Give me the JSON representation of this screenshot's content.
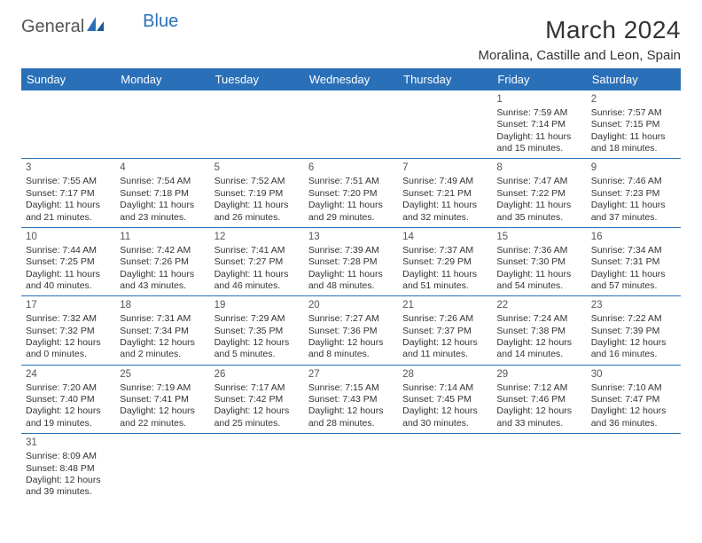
{
  "logo": {
    "text1": "General",
    "text2": "Blue"
  },
  "title": "March 2024",
  "location": "Moralina, Castille and Leon, Spain",
  "colors": {
    "header_bg": "#2a70b8",
    "header_fg": "#ffffff",
    "border": "#2a70b8",
    "text": "#333333",
    "logo_accent": "#2a70b8"
  },
  "day_headers": [
    "Sunday",
    "Monday",
    "Tuesday",
    "Wednesday",
    "Thursday",
    "Friday",
    "Saturday"
  ],
  "weeks": [
    [
      null,
      null,
      null,
      null,
      null,
      {
        "d": "1",
        "sr": "7:59 AM",
        "ss": "7:14 PM",
        "dl": "11 hours and 15 minutes."
      },
      {
        "d": "2",
        "sr": "7:57 AM",
        "ss": "7:15 PM",
        "dl": "11 hours and 18 minutes."
      }
    ],
    [
      {
        "d": "3",
        "sr": "7:55 AM",
        "ss": "7:17 PM",
        "dl": "11 hours and 21 minutes."
      },
      {
        "d": "4",
        "sr": "7:54 AM",
        "ss": "7:18 PM",
        "dl": "11 hours and 23 minutes."
      },
      {
        "d": "5",
        "sr": "7:52 AM",
        "ss": "7:19 PM",
        "dl": "11 hours and 26 minutes."
      },
      {
        "d": "6",
        "sr": "7:51 AM",
        "ss": "7:20 PM",
        "dl": "11 hours and 29 minutes."
      },
      {
        "d": "7",
        "sr": "7:49 AM",
        "ss": "7:21 PM",
        "dl": "11 hours and 32 minutes."
      },
      {
        "d": "8",
        "sr": "7:47 AM",
        "ss": "7:22 PM",
        "dl": "11 hours and 35 minutes."
      },
      {
        "d": "9",
        "sr": "7:46 AM",
        "ss": "7:23 PM",
        "dl": "11 hours and 37 minutes."
      }
    ],
    [
      {
        "d": "10",
        "sr": "7:44 AM",
        "ss": "7:25 PM",
        "dl": "11 hours and 40 minutes."
      },
      {
        "d": "11",
        "sr": "7:42 AM",
        "ss": "7:26 PM",
        "dl": "11 hours and 43 minutes."
      },
      {
        "d": "12",
        "sr": "7:41 AM",
        "ss": "7:27 PM",
        "dl": "11 hours and 46 minutes."
      },
      {
        "d": "13",
        "sr": "7:39 AM",
        "ss": "7:28 PM",
        "dl": "11 hours and 48 minutes."
      },
      {
        "d": "14",
        "sr": "7:37 AM",
        "ss": "7:29 PM",
        "dl": "11 hours and 51 minutes."
      },
      {
        "d": "15",
        "sr": "7:36 AM",
        "ss": "7:30 PM",
        "dl": "11 hours and 54 minutes."
      },
      {
        "d": "16",
        "sr": "7:34 AM",
        "ss": "7:31 PM",
        "dl": "11 hours and 57 minutes."
      }
    ],
    [
      {
        "d": "17",
        "sr": "7:32 AM",
        "ss": "7:32 PM",
        "dl": "12 hours and 0 minutes."
      },
      {
        "d": "18",
        "sr": "7:31 AM",
        "ss": "7:34 PM",
        "dl": "12 hours and 2 minutes."
      },
      {
        "d": "19",
        "sr": "7:29 AM",
        "ss": "7:35 PM",
        "dl": "12 hours and 5 minutes."
      },
      {
        "d": "20",
        "sr": "7:27 AM",
        "ss": "7:36 PM",
        "dl": "12 hours and 8 minutes."
      },
      {
        "d": "21",
        "sr": "7:26 AM",
        "ss": "7:37 PM",
        "dl": "12 hours and 11 minutes."
      },
      {
        "d": "22",
        "sr": "7:24 AM",
        "ss": "7:38 PM",
        "dl": "12 hours and 14 minutes."
      },
      {
        "d": "23",
        "sr": "7:22 AM",
        "ss": "7:39 PM",
        "dl": "12 hours and 16 minutes."
      }
    ],
    [
      {
        "d": "24",
        "sr": "7:20 AM",
        "ss": "7:40 PM",
        "dl": "12 hours and 19 minutes."
      },
      {
        "d": "25",
        "sr": "7:19 AM",
        "ss": "7:41 PM",
        "dl": "12 hours and 22 minutes."
      },
      {
        "d": "26",
        "sr": "7:17 AM",
        "ss": "7:42 PM",
        "dl": "12 hours and 25 minutes."
      },
      {
        "d": "27",
        "sr": "7:15 AM",
        "ss": "7:43 PM",
        "dl": "12 hours and 28 minutes."
      },
      {
        "d": "28",
        "sr": "7:14 AM",
        "ss": "7:45 PM",
        "dl": "12 hours and 30 minutes."
      },
      {
        "d": "29",
        "sr": "7:12 AM",
        "ss": "7:46 PM",
        "dl": "12 hours and 33 minutes."
      },
      {
        "d": "30",
        "sr": "7:10 AM",
        "ss": "7:47 PM",
        "dl": "12 hours and 36 minutes."
      }
    ],
    [
      {
        "d": "31",
        "sr": "8:09 AM",
        "ss": "8:48 PM",
        "dl": "12 hours and 39 minutes."
      },
      null,
      null,
      null,
      null,
      null,
      null
    ]
  ]
}
